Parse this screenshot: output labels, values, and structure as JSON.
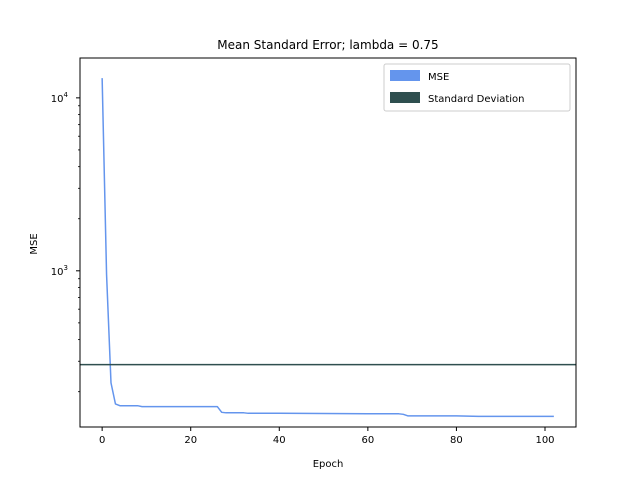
{
  "chart_data": {
    "type": "line",
    "title": "Mean Standard Error; lambda = 0.75",
    "xlabel": "Epoch",
    "ylabel": "MSE",
    "y_scale": "log",
    "xlim": [
      -5,
      107
    ],
    "ylim": [
      125,
      17000
    ],
    "x_ticks": [
      0,
      20,
      40,
      60,
      80,
      100
    ],
    "x_tick_labels": [
      "0",
      "20",
      "40",
      "60",
      "80",
      "100"
    ],
    "y_ticks": [
      1000,
      10000
    ],
    "y_tick_labels": [
      "10^3",
      "10^4"
    ],
    "grid": false,
    "legend_position": "top-right",
    "series": [
      {
        "name": "MSE",
        "kind": "line",
        "color": "#6495ed",
        "x": [
          0,
          1,
          2,
          3,
          4,
          5,
          6,
          8,
          9,
          10,
          20,
          26,
          27,
          28,
          32,
          33,
          40,
          50,
          60,
          67,
          68,
          69,
          70,
          80,
          85,
          90,
          100,
          102
        ],
        "y": [
          13000,
          950,
          225,
          170,
          166,
          166,
          166,
          166,
          164,
          164,
          164,
          164,
          152,
          151,
          151,
          150,
          150,
          149.5,
          149,
          149,
          148,
          145,
          145,
          145,
          144,
          144,
          144,
          144
        ]
      },
      {
        "name": "Standard Deviation",
        "kind": "hline",
        "color": "#2f4f4f",
        "y": 287
      }
    ]
  }
}
